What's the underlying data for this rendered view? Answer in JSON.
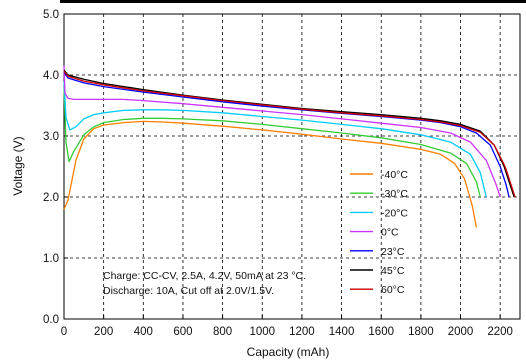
{
  "chart_data": {
    "type": "line",
    "title": "",
    "xlabel": "Capacity (mAh)",
    "ylabel": "Voltage (V)",
    "xlim": [
      0,
      2300
    ],
    "ylim": [
      0.0,
      5.0
    ],
    "x_ticks": [
      0,
      200,
      400,
      600,
      800,
      1000,
      1200,
      1400,
      1600,
      1800,
      2000,
      2200
    ],
    "y_ticks": [
      0.0,
      1.0,
      2.0,
      3.0,
      4.0,
      5.0
    ],
    "y_tick_labels": [
      "0.0",
      "1.0",
      "2.0",
      "3.0",
      "4.0",
      "5.0"
    ],
    "grid": true,
    "grid_style": "dashed",
    "legend_position": "right",
    "annotations": [
      "Charge: CC-CV, 2.5A, 4.2V, 50mA at 23 °C.",
      "Discharge: 10A, Cut off at 2.0V/1.5V."
    ],
    "series": [
      {
        "name": "-40°C",
        "color": "#ff7f00",
        "x": [
          0,
          20,
          60,
          100,
          150,
          200,
          300,
          400,
          500,
          600,
          800,
          1000,
          1200,
          1400,
          1600,
          1800,
          1900,
          1970,
          2020,
          2060,
          2080
        ],
        "y": [
          1.8,
          1.95,
          2.6,
          2.95,
          3.12,
          3.18,
          3.22,
          3.24,
          3.23,
          3.21,
          3.16,
          3.1,
          3.03,
          2.95,
          2.88,
          2.78,
          2.7,
          2.55,
          2.3,
          1.85,
          1.5
        ]
      },
      {
        "name": "-30°C",
        "color": "#33cc33",
        "x": [
          0,
          10,
          25,
          50,
          100,
          150,
          200,
          300,
          400,
          500,
          600,
          800,
          1000,
          1200,
          1400,
          1600,
          1800,
          1950,
          2030,
          2080,
          2100
        ],
        "y": [
          3.8,
          2.9,
          2.58,
          2.75,
          3.02,
          3.15,
          3.22,
          3.27,
          3.29,
          3.29,
          3.28,
          3.25,
          3.19,
          3.12,
          3.05,
          2.97,
          2.86,
          2.72,
          2.55,
          2.25,
          2.0
        ]
      },
      {
        "name": "-20°C",
        "color": "#00ccff",
        "x": [
          0,
          10,
          30,
          60,
          100,
          150,
          200,
          300,
          400,
          500,
          600,
          800,
          1000,
          1200,
          1400,
          1600,
          1800,
          1950,
          2050,
          2100,
          2130
        ],
        "y": [
          3.9,
          3.3,
          3.1,
          3.15,
          3.28,
          3.35,
          3.38,
          3.42,
          3.43,
          3.43,
          3.42,
          3.38,
          3.32,
          3.26,
          3.19,
          3.12,
          3.02,
          2.9,
          2.7,
          2.4,
          2.0
        ]
      },
      {
        "name": "0°C",
        "color": "#cc33ff",
        "x": [
          0,
          5,
          20,
          50,
          100,
          200,
          300,
          400,
          600,
          800,
          1000,
          1200,
          1400,
          1600,
          1800,
          1950,
          2050,
          2130,
          2180,
          2200
        ],
        "y": [
          4.15,
          3.7,
          3.62,
          3.6,
          3.6,
          3.6,
          3.6,
          3.58,
          3.53,
          3.47,
          3.41,
          3.35,
          3.28,
          3.21,
          3.14,
          3.05,
          2.9,
          2.6,
          2.2,
          2.0
        ]
      },
      {
        "name": "23°C",
        "color": "#0000ff",
        "x": [
          0,
          20,
          100,
          200,
          400,
          600,
          800,
          1000,
          1200,
          1400,
          1600,
          1800,
          1900,
          2000,
          2080,
          2150,
          2200,
          2230,
          2245
        ],
        "y": [
          4.05,
          3.95,
          3.87,
          3.81,
          3.72,
          3.64,
          3.56,
          3.49,
          3.43,
          3.37,
          3.32,
          3.26,
          3.22,
          3.15,
          3.05,
          2.85,
          2.5,
          2.2,
          2.0
        ]
      },
      {
        "name": "45°C",
        "color": "#000000",
        "x": [
          0,
          20,
          100,
          200,
          400,
          600,
          800,
          1000,
          1200,
          1400,
          1600,
          1800,
          1900,
          2000,
          2100,
          2170,
          2220,
          2250,
          2270
        ],
        "y": [
          4.08,
          4.0,
          3.93,
          3.86,
          3.76,
          3.67,
          3.59,
          3.52,
          3.45,
          3.4,
          3.35,
          3.29,
          3.25,
          3.19,
          3.08,
          2.85,
          2.5,
          2.2,
          2.0
        ]
      },
      {
        "name": "60°C",
        "color": "#cc0000",
        "x": [
          0,
          20,
          100,
          200,
          400,
          600,
          800,
          1000,
          1200,
          1400,
          1600,
          1800,
          1900,
          2000,
          2100,
          2170,
          2225,
          2255,
          2275
        ],
        "y": [
          4.06,
          3.98,
          3.9,
          3.84,
          3.74,
          3.66,
          3.58,
          3.51,
          3.44,
          3.38,
          3.33,
          3.27,
          3.23,
          3.17,
          3.06,
          2.85,
          2.5,
          2.2,
          2.0
        ]
      }
    ]
  }
}
